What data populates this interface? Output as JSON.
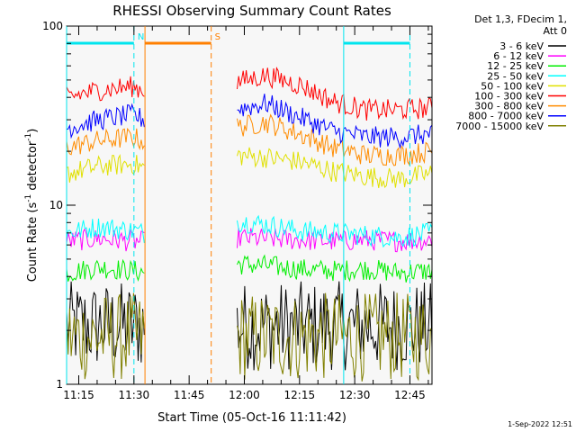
{
  "chart_data": {
    "type": "line",
    "title": "RHESSI Observing Summary Count Rates",
    "xlabel": "Start Time (05-Oct-16 11:11:42)",
    "ylabel": "Count Rate (s",
    "ylabel_sup": "-1",
    "ylabel_tail": " detector",
    "ylabel_tail_sup": "-1",
    "ylabel_close": ")",
    "yscale": "log",
    "ylim": [
      1,
      100
    ],
    "y_tick_labels": [
      "1",
      "10",
      "100"
    ],
    "x_tick_labels": [
      "11:15",
      "11:30",
      "11:45",
      "12:00",
      "12:15",
      "12:30",
      "12:45"
    ],
    "xlim": [
      "11:11:42",
      "12:51:00"
    ],
    "legend_header": [
      "Det 1,3, FDecim 1,",
      "Att 0"
    ],
    "legend_placement": "right",
    "timestamp": "1-Sep-2022 12:51",
    "background_color": "#f7f7f7",
    "annotations": [
      {
        "label": "N",
        "color": "#00e5ee",
        "start": "11:11:42",
        "end": "11:30:00"
      },
      {
        "label": "S",
        "color": "#ff7f00",
        "start": "11:33:00",
        "end": "11:51:00"
      },
      {
        "label": "",
        "color": "#00e5ee",
        "start": "12:27:00",
        "end": "12:45:00"
      }
    ],
    "data_gaps": [
      [
        "11:33:00",
        "11:58:00"
      ]
    ],
    "series": [
      {
        "name": "3 - 6 keV",
        "color": "#000000",
        "profile": [
          1.5,
          1.5,
          1.5,
          1.5,
          1.5,
          1.5,
          1.5,
          1.5,
          1.5,
          1.5,
          1.5,
          1.5
        ]
      },
      {
        "name": "6 - 12 keV",
        "color": "#ff00ff",
        "profile": [
          6.3,
          6.5,
          6.3,
          6.1,
          6.3,
          6.6,
          6.5,
          6.4,
          6.3,
          6.4,
          6.3,
          6.4
        ]
      },
      {
        "name": "12 - 25 keV",
        "color": "#00ee00",
        "profile": [
          4.2,
          4.5,
          4.3,
          4.1,
          4.3,
          4.7,
          4.6,
          4.4,
          4.3,
          4.4,
          4.2,
          4.3
        ]
      },
      {
        "name": "25 - 50 keV",
        "color": "#00ffff",
        "profile": [
          7.0,
          7.6,
          7.2,
          6.6,
          7.8,
          8.2,
          7.8,
          7.2,
          7.0,
          6.8,
          6.6,
          7.0
        ]
      },
      {
        "name": "50 - 100 keV",
        "color": "#e0e000",
        "profile": [
          15.0,
          16.5,
          17.0,
          14.5,
          17.0,
          19.0,
          18.5,
          17.5,
          15.5,
          14.5,
          14.0,
          15.0
        ]
      },
      {
        "name": "100 - 300 keV",
        "color": "#ff0000",
        "profile": [
          40.0,
          44.0,
          46.0,
          39.0,
          43.0,
          48.0,
          53.0,
          47.0,
          38.0,
          34.0,
          34.0,
          35.0
        ]
      },
      {
        "name": "300 - 800 keV",
        "color": "#ff8c00",
        "profile": [
          21.0,
          23.0,
          24.0,
          20.0,
          24.0,
          27.0,
          29.0,
          25.0,
          21.0,
          19.0,
          19.0,
          20.0
        ]
      },
      {
        "name": "800 - 7000 keV",
        "color": "#0000ff",
        "profile": [
          27.0,
          30.0,
          32.0,
          26.0,
          30.0,
          34.0,
          37.0,
          31.0,
          26.0,
          24.0,
          24.0,
          25.0
        ]
      },
      {
        "name": "7000 - 15000 keV",
        "color": "#808000",
        "profile": [
          1.3,
          1.3,
          1.3,
          1.3,
          1.3,
          1.3,
          1.3,
          1.3,
          1.3,
          1.3,
          1.3,
          1.3
        ]
      }
    ]
  }
}
